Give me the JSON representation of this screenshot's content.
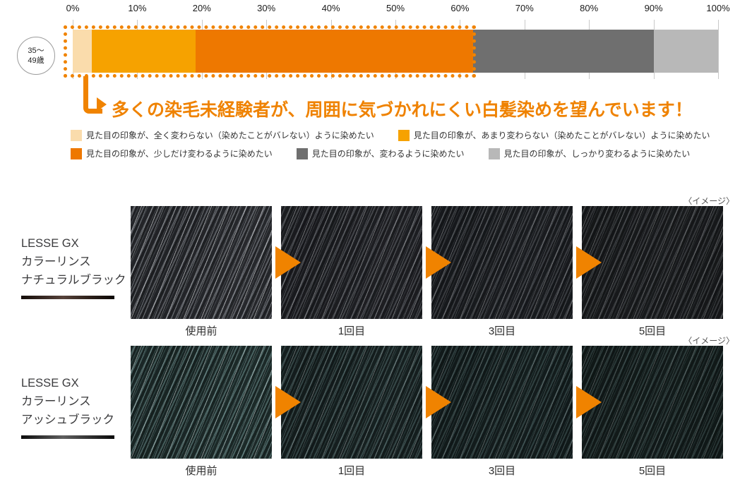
{
  "accent": "#F08300",
  "chart_data": {
    "type": "bar",
    "orientation": "horizontal-stacked",
    "group_label_lines": [
      "35〜",
      "49歳"
    ],
    "axis_ticks": [
      "0%",
      "10%",
      "20%",
      "30%",
      "40%",
      "50%",
      "60%",
      "70%",
      "80%",
      "90%",
      "100%"
    ],
    "xlim": [
      0,
      100
    ],
    "grid": true,
    "series": [
      {
        "name": "見た目の印象が、全く変わらない（染めたことがバレない）ように染めたい",
        "value": 3,
        "color": "#FADCAC"
      },
      {
        "name": "見た目の印象が、あまり変わらない（染めたことがバレない）ように染めたい",
        "value": 16,
        "color": "#F6A200"
      },
      {
        "name": "見た目の印象が、少しだけ変わるように染めたい",
        "value": 43,
        "color": "#EE7800"
      },
      {
        "name": "見た目の印象が、変わるように染めたい",
        "value": 28,
        "color": "#6F6F6F"
      },
      {
        "name": "見た目の印象が、しっかり変わるように染めたい",
        "value": 10,
        "color": "#B8B8B8"
      }
    ],
    "highlight": {
      "from": 0,
      "to": 62,
      "border_color": "#F08300"
    },
    "callout": "多くの染毛未経験者が、周囲に気づかれにくい白髪染めを望んでいます！",
    "callout_color": "#EF8200"
  },
  "legend": {
    "rows": [
      [
        0,
        1
      ],
      [
        2,
        3,
        4
      ]
    ]
  },
  "products": [
    {
      "name_lines": [
        "LESSE GX",
        "カラーリンス",
        "ナチュラルブラック"
      ],
      "note": "〈イメージ〉",
      "stages": [
        "使用前",
        "1回目",
        "3回目",
        "5回目"
      ],
      "variant": "natural"
    },
    {
      "name_lines": [
        "LESSE GX",
        "カラーリンス",
        "アッシュブラック"
      ],
      "note": "〈イメージ〉",
      "stages": [
        "使用前",
        "1回目",
        "3回目",
        "5回目"
      ],
      "variant": "ash"
    }
  ]
}
